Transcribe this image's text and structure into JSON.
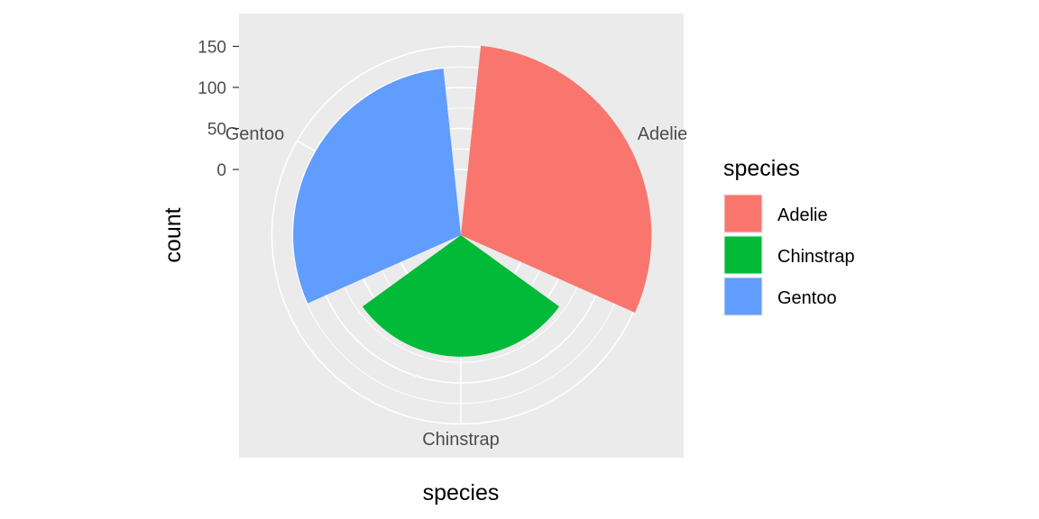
{
  "chart_data": {
    "type": "bar",
    "coord": "polar",
    "categories": [
      "Adelie",
      "Chinstrap",
      "Gentoo"
    ],
    "values": [
      152,
      68,
      124
    ],
    "colors": [
      "#F8766D",
      "#00BA38",
      "#619CFF"
    ],
    "xlabel": "species",
    "ylabel": "count",
    "y_ticks": [
      0,
      50,
      100,
      150
    ],
    "ylim": [
      -80,
      190
    ],
    "panel_background": "#EBEBEB",
    "grid": true,
    "legend": {
      "title": "species",
      "position": "right",
      "entries": [
        "Adelie",
        "Chinstrap",
        "Gentoo"
      ]
    }
  }
}
